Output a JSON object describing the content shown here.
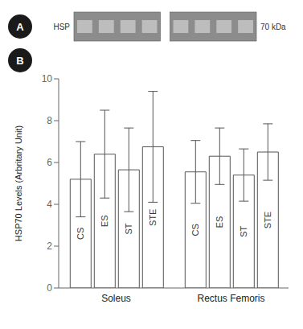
{
  "chart_data": {
    "type": "bar",
    "categories": [
      "Soleus",
      "Rectus Femoris"
    ],
    "series": [
      {
        "name": "CS",
        "values": [
          5.2,
          5.55
        ],
        "errors": [
          1.8,
          1.5
        ]
      },
      {
        "name": "ES",
        "values": [
          6.4,
          6.3
        ],
        "errors": [
          2.1,
          1.35
        ]
      },
      {
        "name": "ST",
        "values": [
          5.65,
          5.4
        ],
        "errors": [
          2.0,
          1.25
        ]
      },
      {
        "name": "STE",
        "values": [
          6.75,
          6.5
        ],
        "errors": [
          2.65,
          1.35
        ]
      }
    ],
    "color": "#ffffff",
    "ylabel": "HSP70 Levels  (Arbritary Unit)",
    "ylim": [
      0,
      10
    ],
    "yticks": [
      0,
      2,
      4,
      6,
      8,
      10
    ],
    "grid": false,
    "annotations": [
      "A",
      "HSP",
      "70 kDa",
      "B"
    ]
  }
}
